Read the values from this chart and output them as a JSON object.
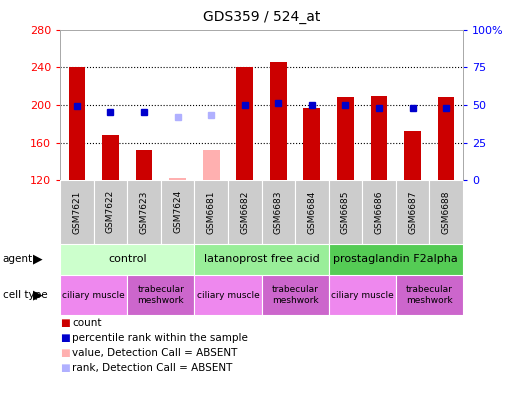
{
  "title": "GDS359 / 524_at",
  "samples": [
    "GSM7621",
    "GSM7622",
    "GSM7623",
    "GSM7624",
    "GSM6681",
    "GSM6682",
    "GSM6683",
    "GSM6684",
    "GSM6685",
    "GSM6686",
    "GSM6687",
    "GSM6688"
  ],
  "counts": [
    240,
    168,
    152,
    null,
    null,
    240,
    246,
    197,
    208,
    210,
    172,
    208
  ],
  "counts_absent": [
    null,
    null,
    null,
    122,
    152,
    null,
    null,
    null,
    null,
    null,
    null,
    null
  ],
  "ranks": [
    49,
    45,
    45,
    null,
    null,
    50,
    51,
    50,
    50,
    48,
    48,
    48
  ],
  "ranks_absent": [
    null,
    null,
    null,
    42,
    43,
    null,
    null,
    null,
    null,
    null,
    null,
    null
  ],
  "ylim_left": [
    120,
    280
  ],
  "ylim_right": [
    0,
    100
  ],
  "yticks_left": [
    120,
    160,
    200,
    240,
    280
  ],
  "yticks_right": [
    0,
    25,
    50,
    75,
    100
  ],
  "bar_color": "#cc0000",
  "bar_absent_color": "#ffb0b0",
  "rank_color": "#0000cc",
  "rank_absent_color": "#b0b0ff",
  "agent_groups": [
    {
      "label": "control",
      "start": 0,
      "end": 3,
      "color": "#ccffcc"
    },
    {
      "label": "latanoprost free acid",
      "start": 4,
      "end": 7,
      "color": "#99ee99"
    },
    {
      "label": "prostaglandin F2alpha",
      "start": 8,
      "end": 11,
      "color": "#55cc55"
    }
  ],
  "cell_type_groups": [
    {
      "label": "ciliary muscle",
      "start": 0,
      "end": 1,
      "color": "#ee88ee"
    },
    {
      "label": "trabecular\nmeshwork",
      "start": 2,
      "end": 3,
      "color": "#cc66cc"
    },
    {
      "label": "ciliary muscle",
      "start": 4,
      "end": 5,
      "color": "#ee88ee"
    },
    {
      "label": "trabecular\nmeshwork",
      "start": 6,
      "end": 7,
      "color": "#cc66cc"
    },
    {
      "label": "ciliary muscle",
      "start": 8,
      "end": 9,
      "color": "#ee88ee"
    },
    {
      "label": "trabecular\nmeshwork",
      "start": 10,
      "end": 11,
      "color": "#cc66cc"
    }
  ],
  "legend_items": [
    {
      "label": "count",
      "color": "#cc0000"
    },
    {
      "label": "percentile rank within the sample",
      "color": "#0000cc"
    },
    {
      "label": "value, Detection Call = ABSENT",
      "color": "#ffb0b0"
    },
    {
      "label": "rank, Detection Call = ABSENT",
      "color": "#b0b0ff"
    }
  ]
}
